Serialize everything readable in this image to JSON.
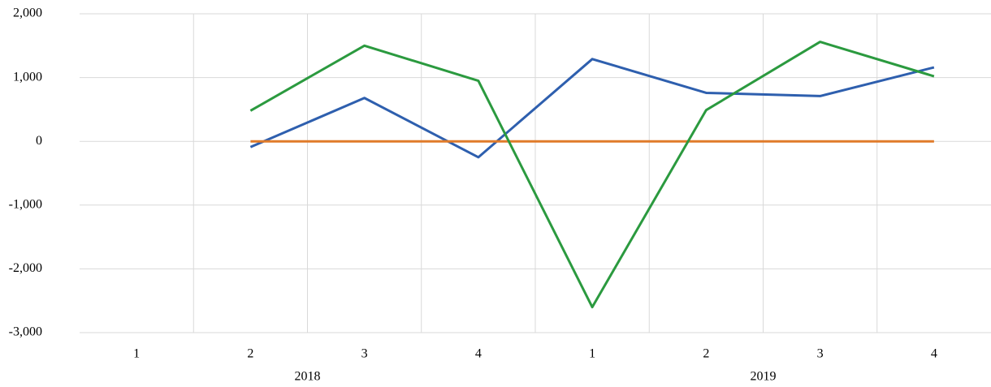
{
  "chart_data": {
    "type": "line",
    "categories": [
      "1",
      "2",
      "3",
      "4",
      "1",
      "2",
      "3",
      "4"
    ],
    "groups": [
      {
        "label": "2018",
        "span": 4
      },
      {
        "label": "2019",
        "span": 4
      }
    ],
    "series": [
      {
        "color": "#2e5fae",
        "values": [
          null,
          -90,
          680,
          -250,
          1290,
          760,
          710,
          1160
        ]
      },
      {
        "color": "#e07b2a",
        "values": [
          null,
          0,
          0,
          0,
          0,
          0,
          0,
          0
        ]
      },
      {
        "color": "#2b9a3f",
        "values": [
          null,
          480,
          1500,
          950,
          -2600,
          490,
          1560,
          1020
        ]
      }
    ],
    "ylim": [
      -3000,
      2000
    ],
    "yticks": [
      {
        "value": -3000,
        "label": "-3,000"
      },
      {
        "value": -2000,
        "label": "-2,000"
      },
      {
        "value": -1000,
        "label": "-1,000"
      },
      0,
      {
        "value": 1000,
        "label": "1,000"
      },
      {
        "value": 2000,
        "label": "2,000"
      }
    ],
    "grid": true
  }
}
